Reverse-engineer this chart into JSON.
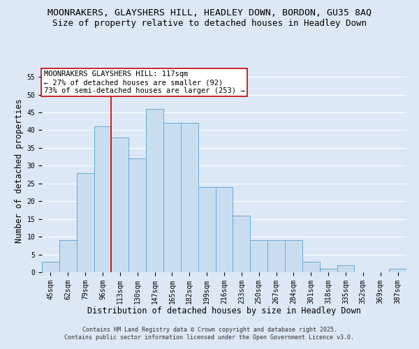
{
  "title_line1": "MOONRAKERS, GLAYSHERS HILL, HEADLEY DOWN, BORDON, GU35 8AQ",
  "title_line2": "Size of property relative to detached houses in Headley Down",
  "xlabel": "Distribution of detached houses by size in Headley Down",
  "ylabel": "Number of detached properties",
  "categories": [
    "45sqm",
    "62sqm",
    "79sqm",
    "96sqm",
    "113sqm",
    "130sqm",
    "147sqm",
    "165sqm",
    "182sqm",
    "199sqm",
    "216sqm",
    "233sqm",
    "250sqm",
    "267sqm",
    "284sqm",
    "301sqm",
    "318sqm",
    "335sqm",
    "352sqm",
    "369sqm",
    "387sqm"
  ],
  "values": [
    3,
    9,
    28,
    41,
    38,
    32,
    46,
    42,
    42,
    24,
    24,
    16,
    9,
    9,
    9,
    3,
    1,
    2,
    0,
    0,
    1
  ],
  "bar_color": "#c9ddf0",
  "bar_edge_color": "#6aaad4",
  "vline_color": "#cc0000",
  "vline_position": 3.5,
  "annotation_text": "MOONRAKERS GLAYSHERS HILL: 117sqm\n← 27% of detached houses are smaller (92)\n73% of semi-detached houses are larger (253) →",
  "annotation_box_color": "#ffffff",
  "annotation_box_edge_color": "#cc0000",
  "ylim": [
    0,
    57
  ],
  "yticks": [
    0,
    5,
    10,
    15,
    20,
    25,
    30,
    35,
    40,
    45,
    50,
    55
  ],
  "background_color": "#dce8f5",
  "plot_bg_color": "#dce8f5",
  "grid_color": "#ffffff",
  "footer_text": "Contains HM Land Registry data © Crown copyright and database right 2025.\nContains public sector information licensed under the Open Government Licence v3.0.",
  "title_fontsize": 9.5,
  "subtitle_fontsize": 9,
  "axis_label_fontsize": 8.5,
  "tick_fontsize": 7,
  "annotation_fontsize": 7.5,
  "footer_fontsize": 6
}
